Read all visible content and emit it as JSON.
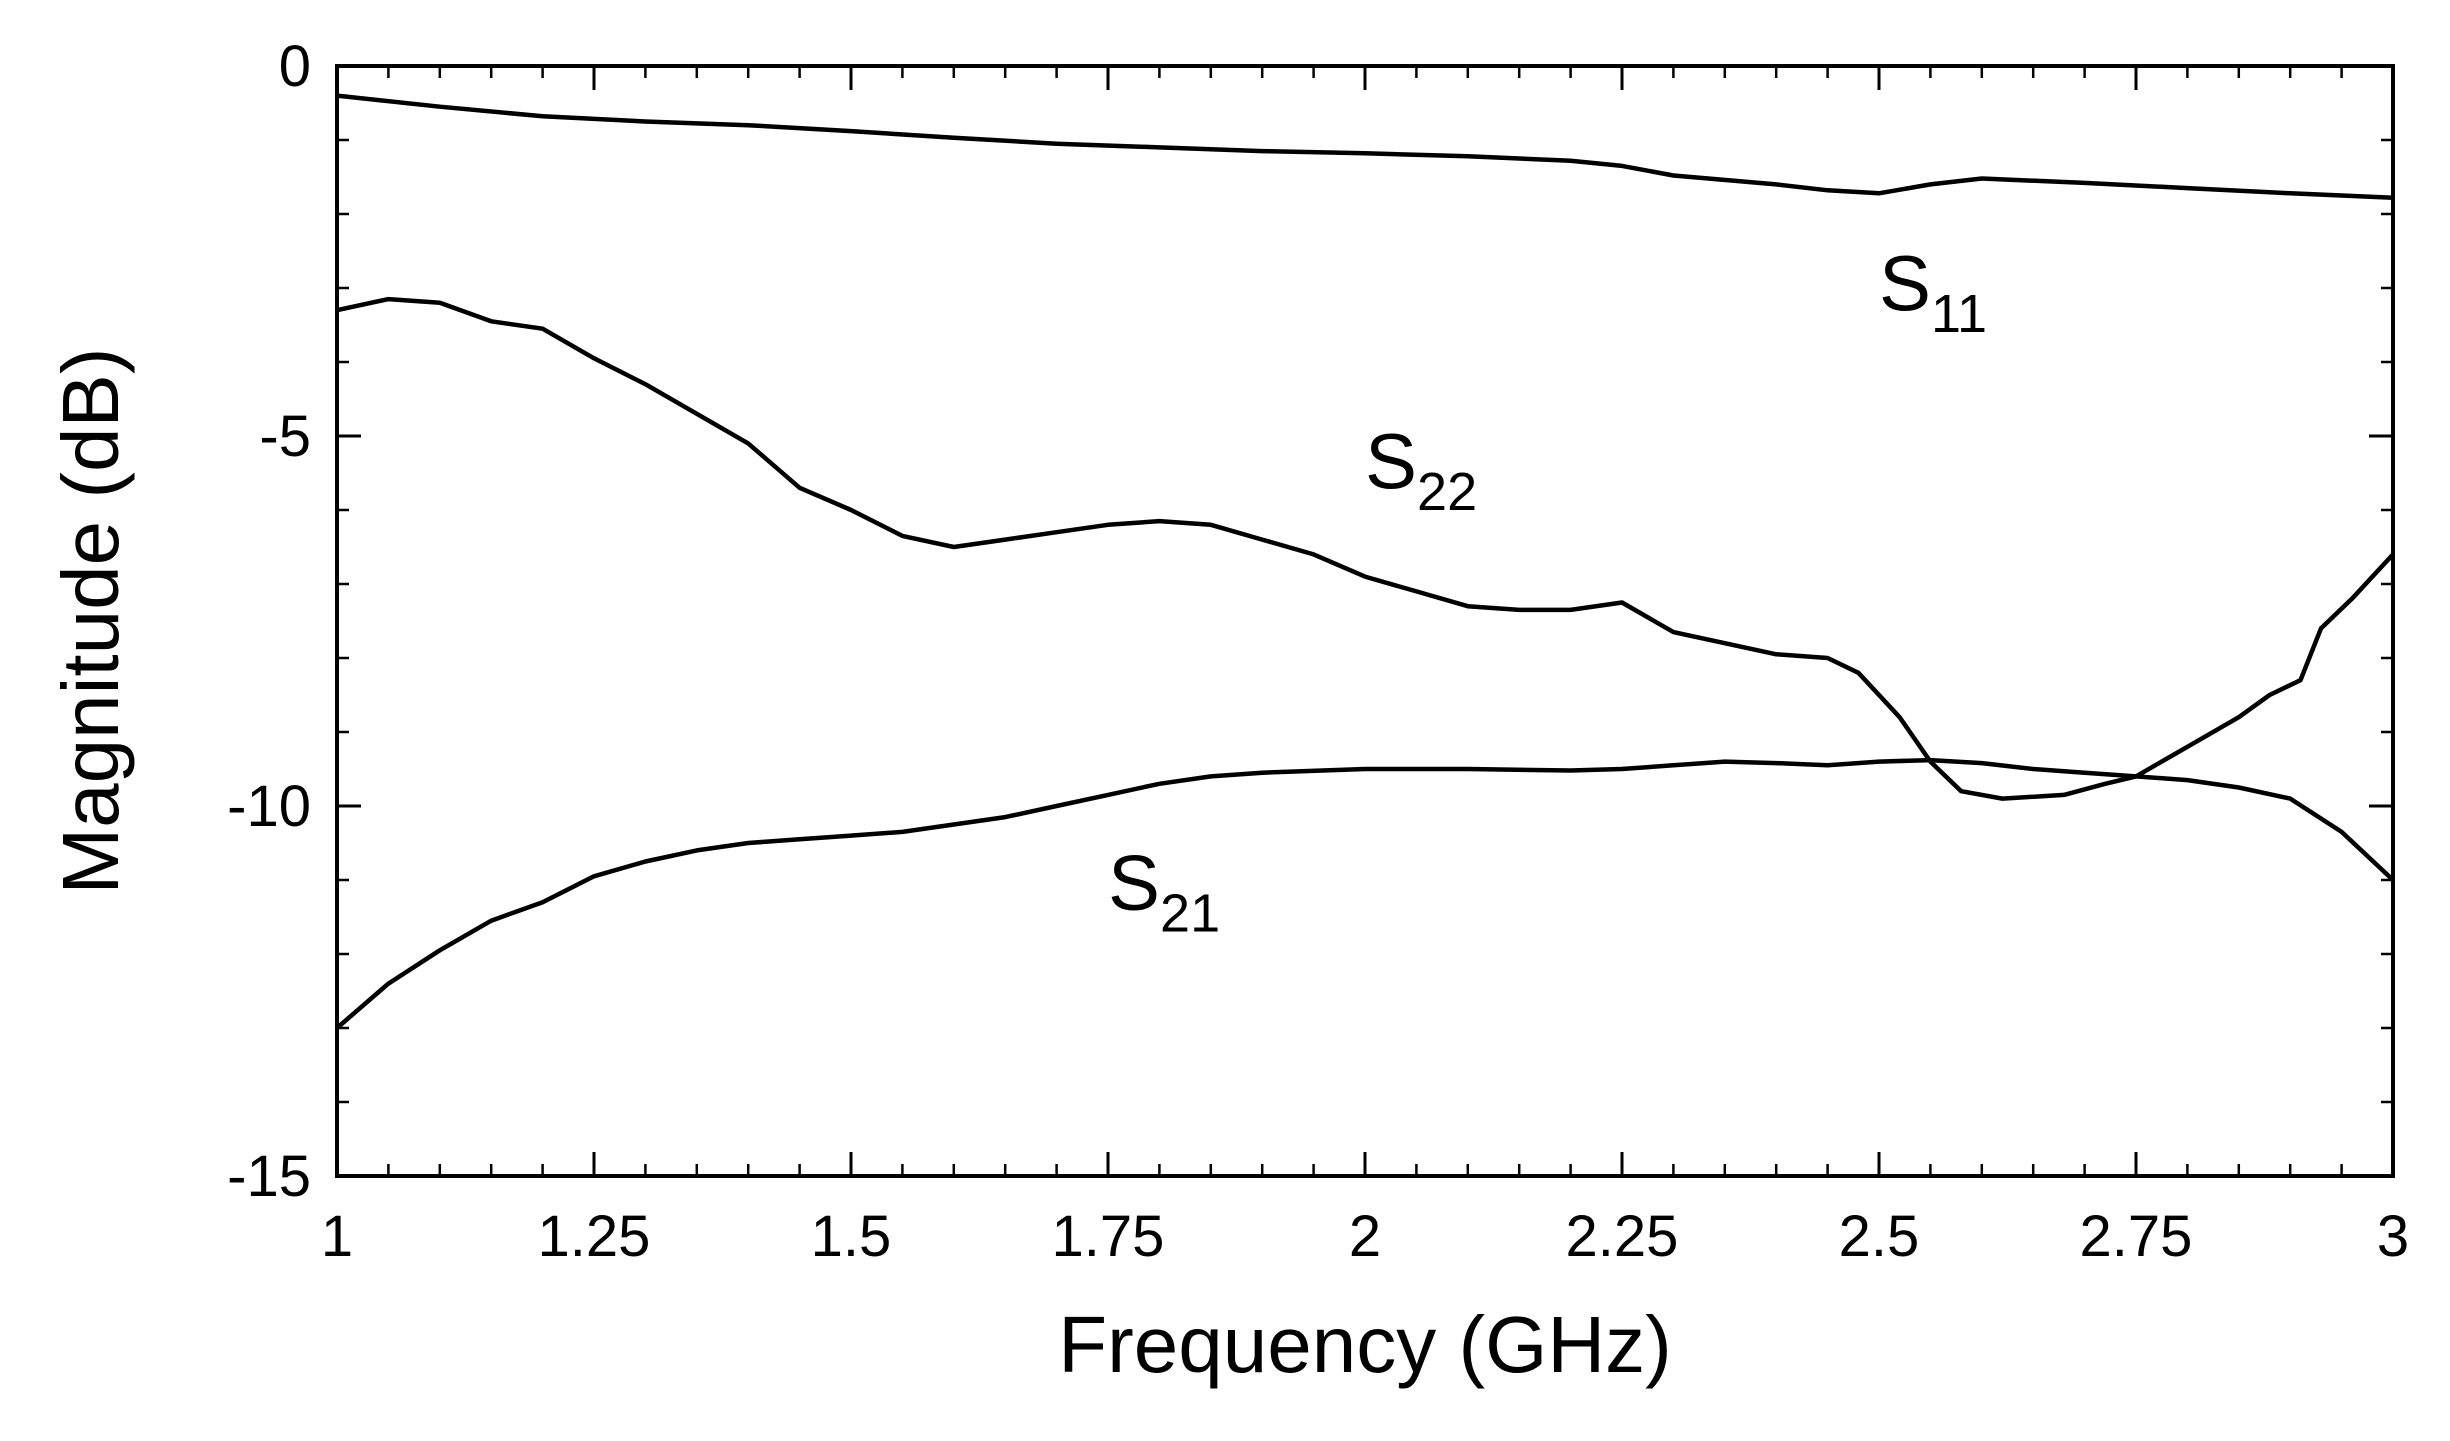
{
  "chart_data": {
    "type": "line",
    "title": "",
    "xlabel": "Frequency (GHz)",
    "ylabel": "Magnitude (dB)",
    "xlim": [
      1,
      3
    ],
    "ylim": [
      -15,
      0
    ],
    "grid": false,
    "x_ticks": [
      {
        "value": 1,
        "label": "1"
      },
      {
        "value": 1.25,
        "label": "1.25"
      },
      {
        "value": 1.5,
        "label": "1.5"
      },
      {
        "value": 1.75,
        "label": "1.75"
      },
      {
        "value": 2,
        "label": "2"
      },
      {
        "value": 2.25,
        "label": "2.25"
      },
      {
        "value": 2.5,
        "label": "2.5"
      },
      {
        "value": 2.75,
        "label": "2.75"
      },
      {
        "value": 3,
        "label": "3"
      }
    ],
    "y_ticks": [
      {
        "value": 0,
        "label": "0"
      },
      {
        "value": -5,
        "label": "-5"
      },
      {
        "value": -10,
        "label": "-10"
      },
      {
        "value": -15,
        "label": "-15"
      }
    ],
    "series": [
      {
        "name": "S11",
        "label_main": "S",
        "label_sub": "11",
        "label_anchor": [
          2.5,
          -3.3
        ],
        "points": [
          [
            1.0,
            -0.4
          ],
          [
            1.1,
            -0.55
          ],
          [
            1.2,
            -0.68
          ],
          [
            1.3,
            -0.75
          ],
          [
            1.4,
            -0.8
          ],
          [
            1.5,
            -0.88
          ],
          [
            1.6,
            -0.97
          ],
          [
            1.7,
            -1.05
          ],
          [
            1.8,
            -1.1
          ],
          [
            1.9,
            -1.15
          ],
          [
            2.0,
            -1.18
          ],
          [
            2.1,
            -1.22
          ],
          [
            2.2,
            -1.28
          ],
          [
            2.25,
            -1.35
          ],
          [
            2.3,
            -1.48
          ],
          [
            2.4,
            -1.6
          ],
          [
            2.45,
            -1.68
          ],
          [
            2.5,
            -1.72
          ],
          [
            2.55,
            -1.6
          ],
          [
            2.6,
            -1.52
          ],
          [
            2.7,
            -1.58
          ],
          [
            2.8,
            -1.65
          ],
          [
            2.9,
            -1.72
          ],
          [
            3.0,
            -1.78
          ]
        ]
      },
      {
        "name": "S22",
        "label_main": "S",
        "label_sub": "22",
        "label_anchor": [
          2.0,
          -5.7
        ],
        "points": [
          [
            1.0,
            -3.3
          ],
          [
            1.05,
            -3.15
          ],
          [
            1.1,
            -3.2
          ],
          [
            1.15,
            -3.45
          ],
          [
            1.2,
            -3.55
          ],
          [
            1.25,
            -3.95
          ],
          [
            1.3,
            -4.3
          ],
          [
            1.35,
            -4.7
          ],
          [
            1.4,
            -5.1
          ],
          [
            1.45,
            -5.7
          ],
          [
            1.5,
            -6.0
          ],
          [
            1.55,
            -6.35
          ],
          [
            1.6,
            -6.5
          ],
          [
            1.65,
            -6.4
          ],
          [
            1.7,
            -6.3
          ],
          [
            1.75,
            -6.2
          ],
          [
            1.8,
            -6.15
          ],
          [
            1.85,
            -6.2
          ],
          [
            1.9,
            -6.4
          ],
          [
            1.95,
            -6.6
          ],
          [
            2.0,
            -6.9
          ],
          [
            2.05,
            -7.1
          ],
          [
            2.1,
            -7.3
          ],
          [
            2.15,
            -7.35
          ],
          [
            2.2,
            -7.35
          ],
          [
            2.25,
            -7.25
          ],
          [
            2.3,
            -7.65
          ],
          [
            2.35,
            -7.8
          ],
          [
            2.4,
            -7.95
          ],
          [
            2.45,
            -8.0
          ],
          [
            2.48,
            -8.2
          ],
          [
            2.52,
            -8.8
          ],
          [
            2.55,
            -9.4
          ],
          [
            2.58,
            -9.8
          ],
          [
            2.62,
            -9.9
          ],
          [
            2.68,
            -9.85
          ],
          [
            2.72,
            -9.7
          ],
          [
            2.75,
            -9.6
          ],
          [
            2.8,
            -9.2
          ],
          [
            2.85,
            -8.8
          ],
          [
            2.88,
            -8.5
          ],
          [
            2.91,
            -8.3
          ],
          [
            2.93,
            -7.6
          ],
          [
            2.96,
            -7.2
          ],
          [
            3.0,
            -6.6
          ]
        ]
      },
      {
        "name": "S21",
        "label_main": "S",
        "label_sub": "21",
        "label_anchor": [
          1.75,
          -11.4
        ],
        "points": [
          [
            1.0,
            -13.0
          ],
          [
            1.05,
            -12.4
          ],
          [
            1.1,
            -11.95
          ],
          [
            1.15,
            -11.55
          ],
          [
            1.2,
            -11.3
          ],
          [
            1.25,
            -10.95
          ],
          [
            1.3,
            -10.75
          ],
          [
            1.35,
            -10.6
          ],
          [
            1.4,
            -10.5
          ],
          [
            1.45,
            -10.45
          ],
          [
            1.5,
            -10.4
          ],
          [
            1.55,
            -10.35
          ],
          [
            1.6,
            -10.25
          ],
          [
            1.65,
            -10.15
          ],
          [
            1.7,
            -10.0
          ],
          [
            1.75,
            -9.85
          ],
          [
            1.8,
            -9.7
          ],
          [
            1.85,
            -9.6
          ],
          [
            1.9,
            -9.55
          ],
          [
            2.0,
            -9.5
          ],
          [
            2.1,
            -9.5
          ],
          [
            2.2,
            -9.52
          ],
          [
            2.25,
            -9.5
          ],
          [
            2.3,
            -9.45
          ],
          [
            2.35,
            -9.4
          ],
          [
            2.4,
            -9.42
          ],
          [
            2.45,
            -9.45
          ],
          [
            2.5,
            -9.4
          ],
          [
            2.55,
            -9.38
          ],
          [
            2.6,
            -9.42
          ],
          [
            2.65,
            -9.5
          ],
          [
            2.7,
            -9.55
          ],
          [
            2.75,
            -9.6
          ],
          [
            2.8,
            -9.65
          ],
          [
            2.85,
            -9.75
          ],
          [
            2.9,
            -9.9
          ],
          [
            2.95,
            -10.35
          ],
          [
            3.0,
            -11.0
          ]
        ]
      }
    ]
  }
}
